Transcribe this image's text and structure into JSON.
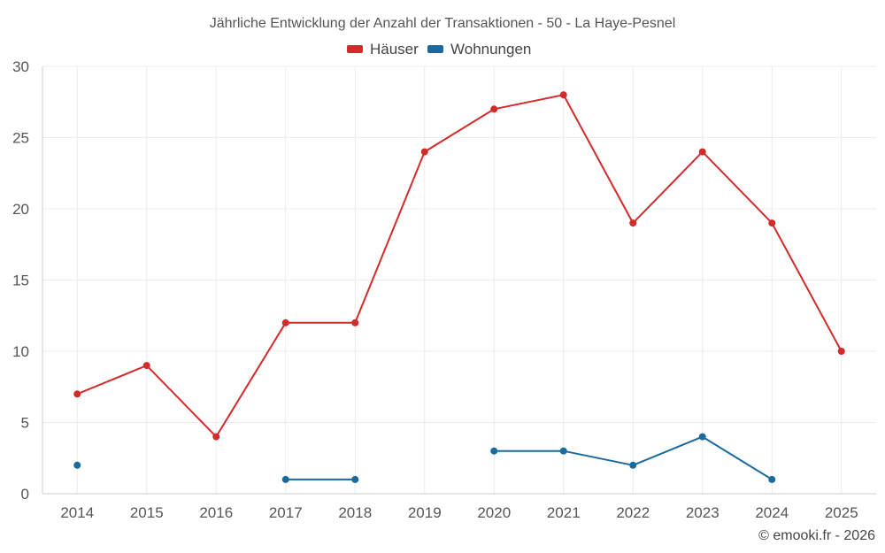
{
  "chart_data": {
    "type": "line",
    "title": "Jährliche Entwicklung der Anzahl der Transaktionen - 50 - La Haye-Pesnel",
    "xlabel": "",
    "ylabel": "",
    "categories": [
      "2014",
      "2015",
      "2016",
      "2017",
      "2018",
      "2019",
      "2020",
      "2021",
      "2022",
      "2023",
      "2024",
      "2025"
    ],
    "ylim": [
      0,
      30
    ],
    "yticks": [
      0,
      5,
      10,
      15,
      20,
      25,
      30
    ],
    "grid": true,
    "legend_position": "top-center",
    "series": [
      {
        "name": "Häuser",
        "color": "#d32a2a",
        "values": [
          7,
          9,
          4,
          12,
          12,
          24,
          27,
          28,
          19,
          24,
          19,
          10
        ]
      },
      {
        "name": "Wohnungen",
        "color": "#1a6a9e",
        "values": [
          2,
          null,
          null,
          1,
          1,
          null,
          3,
          3,
          2,
          4,
          1,
          null
        ]
      }
    ]
  },
  "footer": {
    "credit": "© emooki.fr - 2026"
  }
}
